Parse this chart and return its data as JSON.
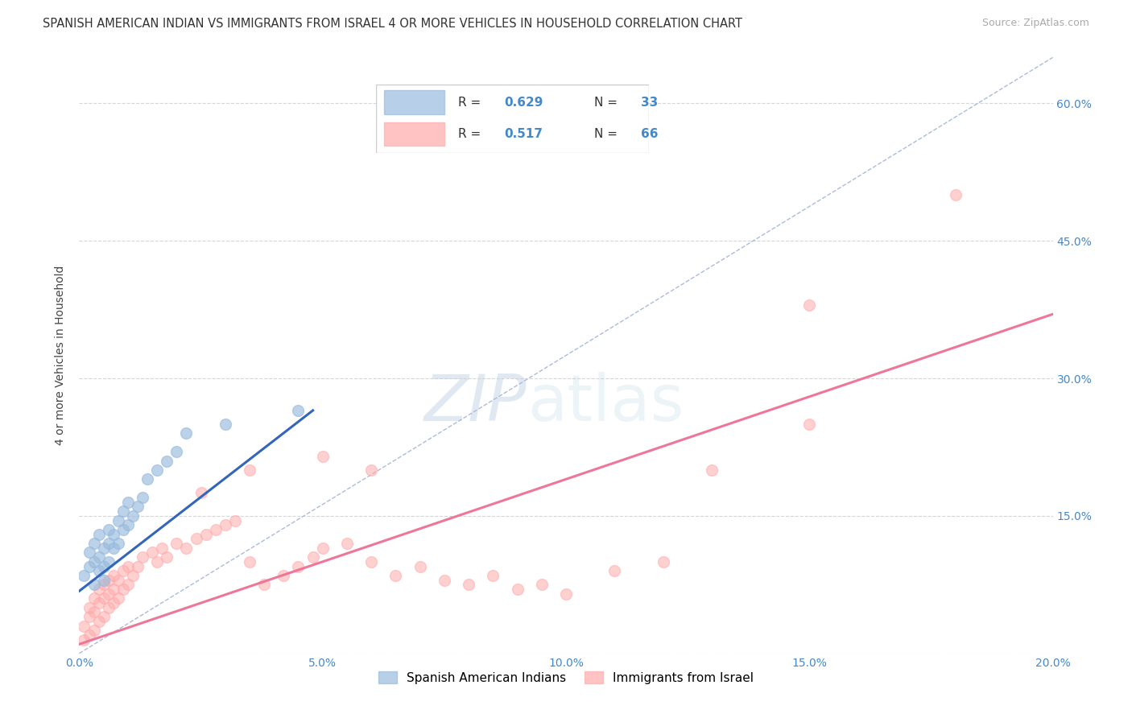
{
  "title": "SPANISH AMERICAN INDIAN VS IMMIGRANTS FROM ISRAEL 4 OR MORE VEHICLES IN HOUSEHOLD CORRELATION CHART",
  "source": "Source: ZipAtlas.com",
  "ylabel": "4 or more Vehicles in Household",
  "xlim": [
    0.0,
    0.2
  ],
  "ylim": [
    0.0,
    0.65
  ],
  "xticks": [
    0.0,
    0.05,
    0.1,
    0.15,
    0.2
  ],
  "xticklabels": [
    "0.0%",
    "5.0%",
    "10.0%",
    "15.0%",
    "20.0%"
  ],
  "yticks_right": [
    0.15,
    0.3,
    0.45,
    0.6
  ],
  "yticklabels_right": [
    "15.0%",
    "30.0%",
    "45.0%",
    "60.0%"
  ],
  "blue_color": "#99BBDD",
  "pink_color": "#FFAAAA",
  "blue_line_color": "#3366BB",
  "pink_line_color": "#EE7799",
  "axis_tick_color": "#4488CC",
  "diag_line_color": "#AABBDD",
  "grid_color": "#CCCCCC",
  "background_color": "#FFFFFF",
  "title_fontsize": 10.5,
  "source_fontsize": 9,
  "tick_fontsize": 10,
  "ylabel_fontsize": 10,
  "legend_fontsize": 11,
  "watermark_text": "ZIPatlas",
  "legend_R_blue": "0.629",
  "legend_N_blue": "33",
  "legend_R_pink": "0.517",
  "legend_N_pink": "66",
  "blue_scatter_x": [
    0.001,
    0.002,
    0.002,
    0.003,
    0.003,
    0.003,
    0.004,
    0.004,
    0.004,
    0.005,
    0.005,
    0.005,
    0.006,
    0.006,
    0.006,
    0.007,
    0.007,
    0.008,
    0.008,
    0.009,
    0.009,
    0.01,
    0.01,
    0.011,
    0.012,
    0.013,
    0.014,
    0.016,
    0.018,
    0.02,
    0.022,
    0.03,
    0.045
  ],
  "blue_scatter_y": [
    0.085,
    0.095,
    0.11,
    0.1,
    0.12,
    0.075,
    0.105,
    0.13,
    0.09,
    0.115,
    0.095,
    0.08,
    0.12,
    0.135,
    0.1,
    0.115,
    0.13,
    0.145,
    0.12,
    0.135,
    0.155,
    0.14,
    0.165,
    0.15,
    0.16,
    0.17,
    0.19,
    0.2,
    0.21,
    0.22,
    0.24,
    0.25,
    0.265
  ],
  "pink_scatter_x": [
    0.001,
    0.001,
    0.002,
    0.002,
    0.002,
    0.003,
    0.003,
    0.003,
    0.004,
    0.004,
    0.004,
    0.005,
    0.005,
    0.005,
    0.006,
    0.006,
    0.006,
    0.007,
    0.007,
    0.007,
    0.008,
    0.008,
    0.009,
    0.009,
    0.01,
    0.01,
    0.011,
    0.012,
    0.013,
    0.015,
    0.016,
    0.017,
    0.018,
    0.02,
    0.022,
    0.024,
    0.026,
    0.028,
    0.03,
    0.032,
    0.035,
    0.038,
    0.042,
    0.045,
    0.048,
    0.05,
    0.055,
    0.06,
    0.065,
    0.07,
    0.075,
    0.08,
    0.085,
    0.09,
    0.095,
    0.1,
    0.11,
    0.12,
    0.13,
    0.15,
    0.025,
    0.035,
    0.05,
    0.06,
    0.15,
    0.18
  ],
  "pink_scatter_y": [
    0.015,
    0.03,
    0.02,
    0.04,
    0.05,
    0.025,
    0.045,
    0.06,
    0.035,
    0.055,
    0.07,
    0.04,
    0.06,
    0.075,
    0.05,
    0.065,
    0.08,
    0.055,
    0.07,
    0.085,
    0.06,
    0.08,
    0.07,
    0.09,
    0.075,
    0.095,
    0.085,
    0.095,
    0.105,
    0.11,
    0.1,
    0.115,
    0.105,
    0.12,
    0.115,
    0.125,
    0.13,
    0.135,
    0.14,
    0.145,
    0.1,
    0.075,
    0.085,
    0.095,
    0.105,
    0.115,
    0.12,
    0.1,
    0.085,
    0.095,
    0.08,
    0.075,
    0.085,
    0.07,
    0.075,
    0.065,
    0.09,
    0.1,
    0.2,
    0.25,
    0.175,
    0.2,
    0.215,
    0.2,
    0.38,
    0.5
  ],
  "blue_line_x": [
    0.0,
    0.048
  ],
  "blue_line_y": [
    0.068,
    0.265
  ],
  "pink_line_x": [
    0.0,
    0.2
  ],
  "pink_line_y": [
    0.01,
    0.37
  ],
  "diag_line_x": [
    0.0,
    0.2
  ],
  "diag_line_y": [
    0.0,
    0.65
  ]
}
